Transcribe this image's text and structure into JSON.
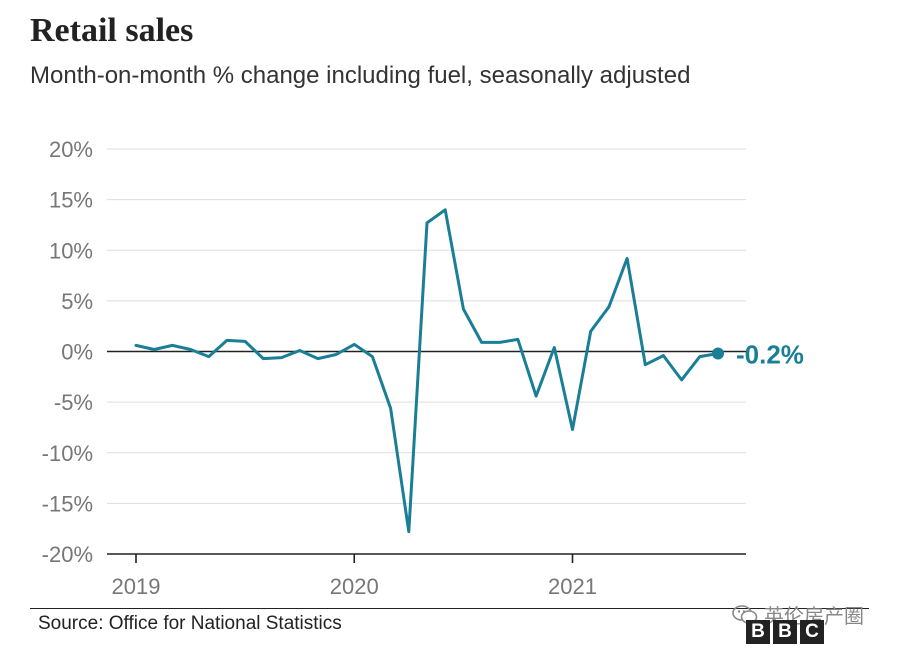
{
  "chart_data": {
    "type": "line",
    "title": "Retail sales",
    "subtitle": "Month-on-month % change including fuel, seasonally adjusted",
    "xlabel": "",
    "ylabel": "",
    "ylim": [
      -20,
      20
    ],
    "yticks": [
      "20%",
      "15%",
      "10%",
      "5%",
      "0%",
      "-5%",
      "-10%",
      "-15%",
      "-20%"
    ],
    "ytick_values": [
      20,
      15,
      10,
      5,
      0,
      -5,
      -10,
      -15,
      -20
    ],
    "xticks": [
      "2019",
      "2020",
      "2021"
    ],
    "xtick_months": [
      0,
      12,
      24
    ],
    "grid": true,
    "series": [
      {
        "name": "Retail sales",
        "color": "#1a7f96",
        "x": [
          0,
          1,
          2,
          3,
          4,
          5,
          6,
          7,
          8,
          9,
          10,
          11,
          12,
          13,
          14,
          15,
          16,
          17,
          18,
          19,
          20,
          21,
          22,
          23,
          24,
          25,
          26,
          27,
          28,
          29,
          30,
          31,
          32
        ],
        "values": [
          0.6,
          0.2,
          0.6,
          0.2,
          -0.5,
          1.1,
          1.0,
          -0.7,
          -0.6,
          0.1,
          -0.7,
          -0.3,
          0.7,
          -0.5,
          -5.6,
          -17.8,
          12.7,
          14.0,
          4.2,
          0.9,
          0.9,
          1.2,
          -4.4,
          0.4,
          -7.7,
          2.0,
          4.4,
          9.2,
          -1.3,
          -0.4,
          -2.8,
          -0.5,
          -0.2
        ]
      }
    ],
    "annotation": {
      "label": "-0.2%",
      "value": -0.2
    }
  },
  "source": "Source: Office for National Statistics",
  "watermark": "英伦房产圈",
  "logo": [
    "B",
    "B",
    "C"
  ],
  "colors": {
    "line": "#1a7f96",
    "grid": "#dddddd",
    "axis": "#222222",
    "tick_text": "#777777"
  }
}
